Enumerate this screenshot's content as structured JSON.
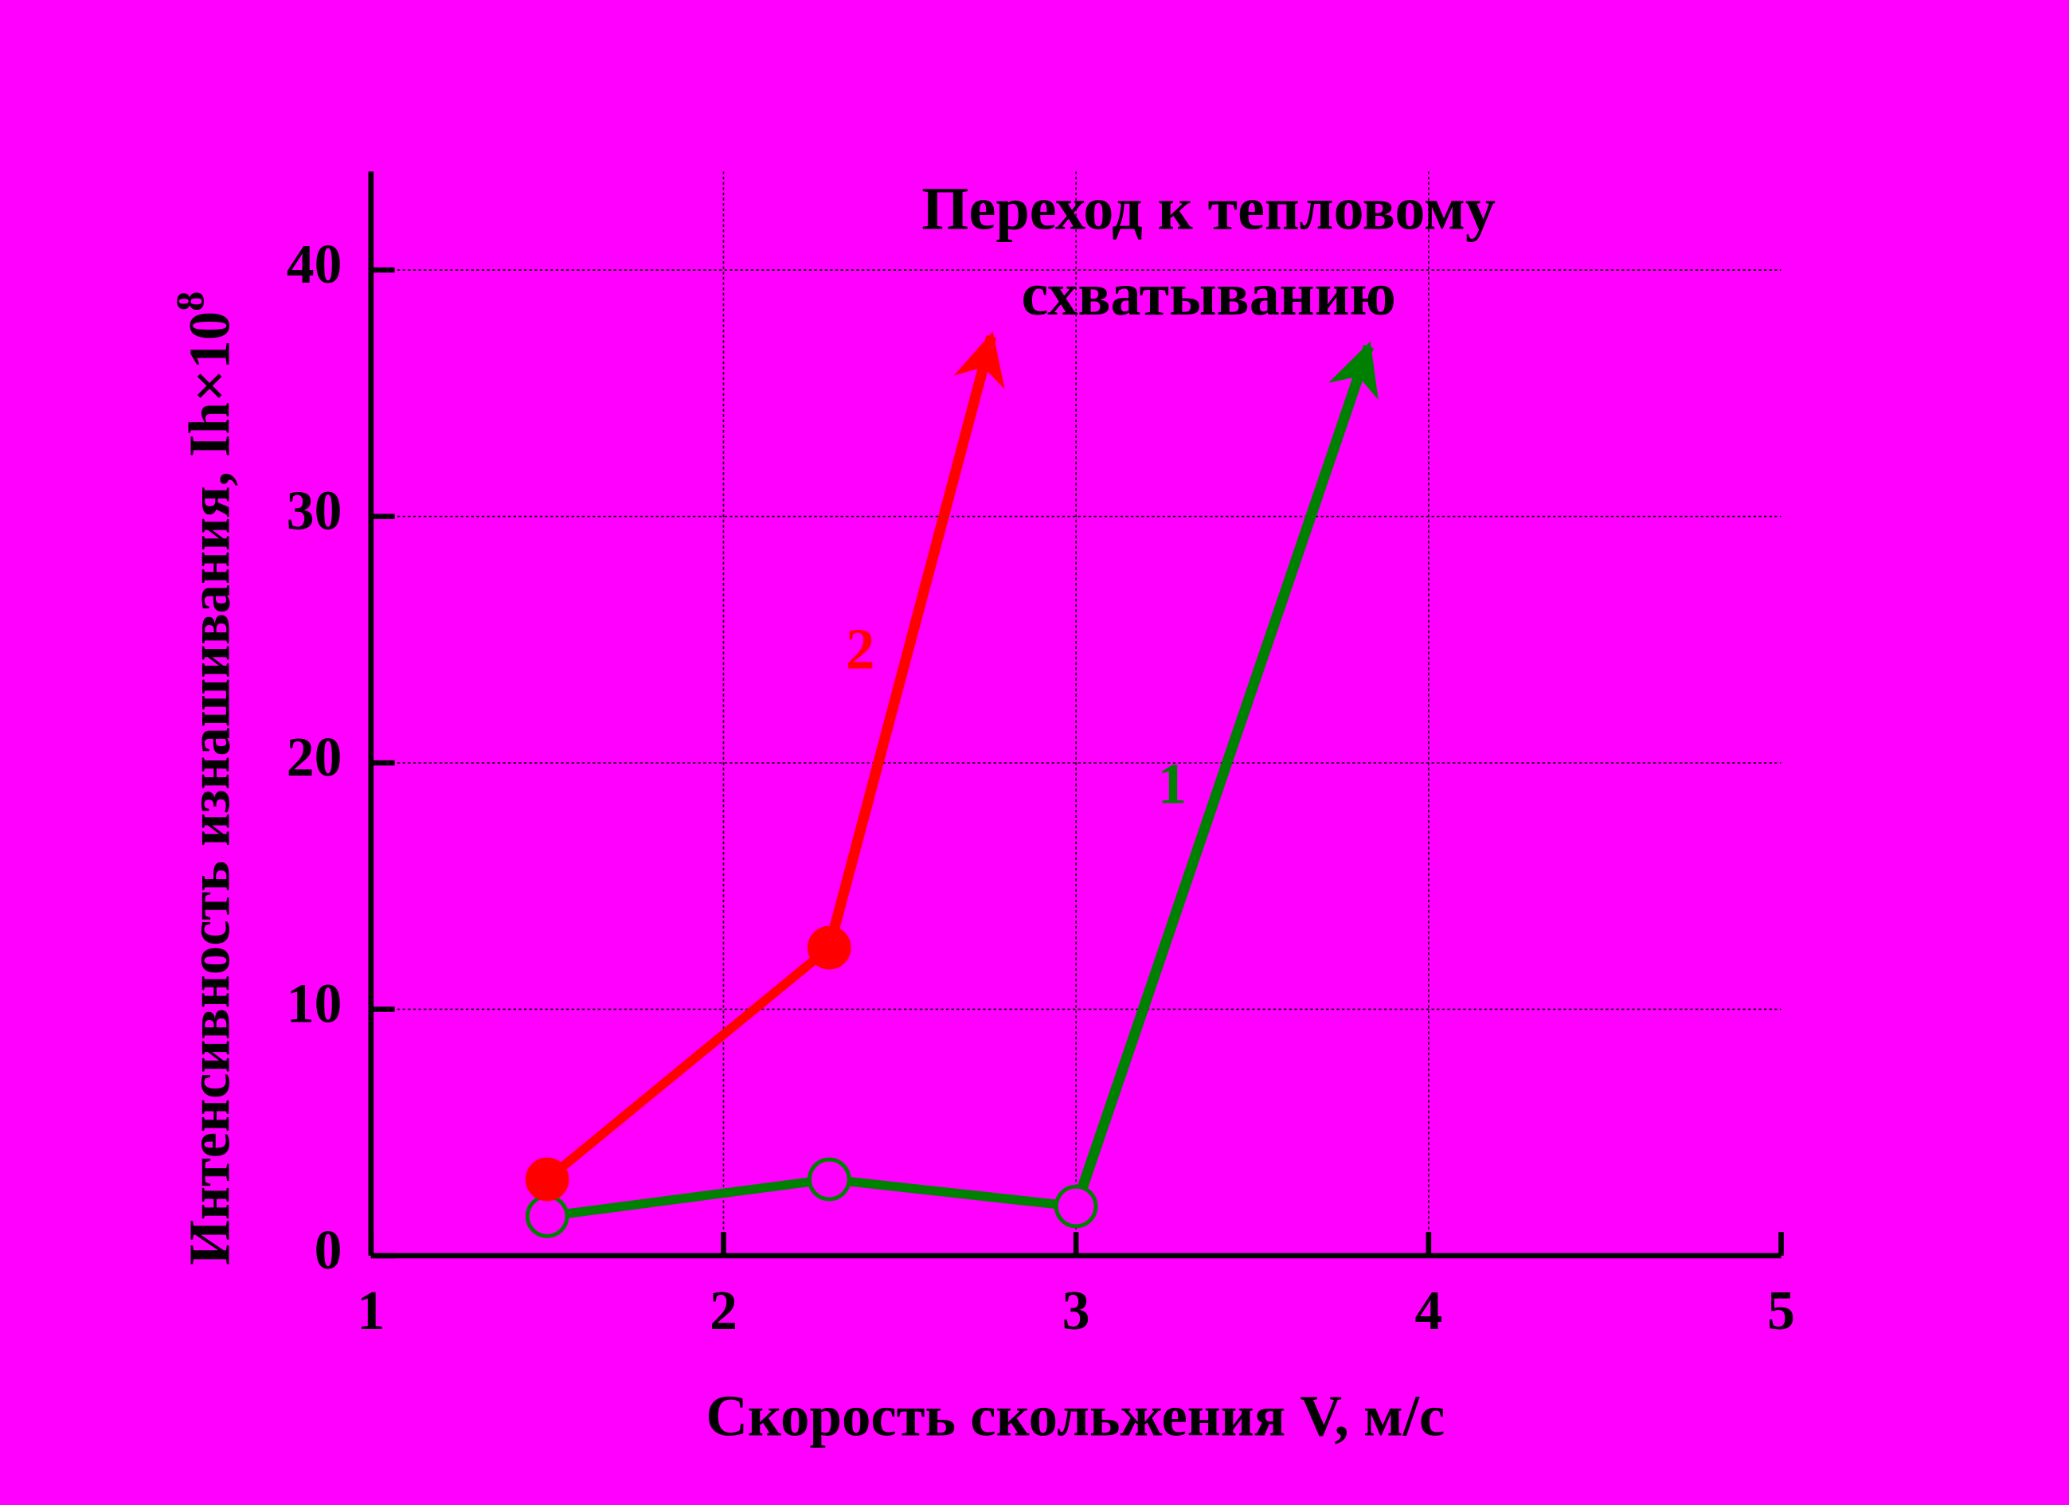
{
  "chart_data": {
    "type": "line",
    "annotation": [
      "Переход к тепловому",
      "схватыванию"
    ],
    "annotation_color": "#0000ff",
    "xlabel": "Скорость скольжения V, м/с",
    "ylabel": "Интенсивность изнашивания, Ih×10",
    "ylabel_superscript": "8",
    "xlim": [
      1,
      5
    ],
    "xticks": [
      1,
      2,
      3,
      4,
      5
    ],
    "ylim": [
      0,
      44
    ],
    "yticks": [
      0,
      10,
      20,
      30,
      40
    ],
    "grid": true,
    "series": [
      {
        "name": "1",
        "color": "#008000",
        "marker": "open",
        "x": [
          1.5,
          2.3,
          3.0
        ],
        "values": [
          1.6,
          3.1,
          2.0
        ],
        "arrow_to": [
          3.83,
          36.9
        ]
      },
      {
        "name": "2",
        "color": "#ff0000",
        "marker": "filled",
        "x": [
          1.5,
          2.3
        ],
        "values": [
          3.1,
          12.5
        ],
        "arrow_to": [
          2.76,
          37.3
        ]
      }
    ]
  }
}
